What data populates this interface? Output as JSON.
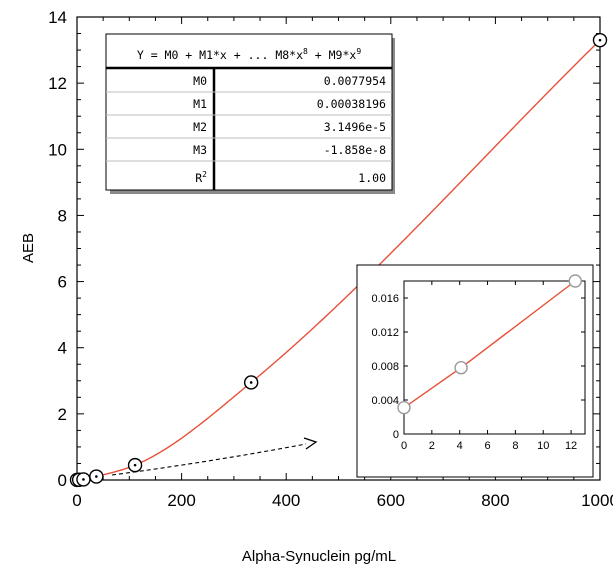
{
  "chart_data": {
    "type": "scatter",
    "xlabel": "Alpha-Synuclein pg/mL",
    "ylabel": "AEB",
    "xlim": [
      0,
      1000
    ],
    "ylim": [
      0,
      14
    ],
    "x_ticks": [
      "0",
      "200",
      "400",
      "600",
      "800",
      "1000"
    ],
    "y_ticks": [
      "0",
      "2",
      "4",
      "6",
      "8",
      "10",
      "12",
      "14"
    ],
    "grid": false,
    "series": [
      {
        "x": [
          0,
          4.1,
          12.3,
          37,
          111,
          333,
          1000
        ],
        "y": [
          0.0031,
          0.0078,
          0.018,
          0.105,
          0.45,
          2.95,
          13.3
        ]
      }
    ],
    "fit": {
      "equation_prefix": "Y = M0 + M1*x + ... M8*x",
      "equation_exp1": "8",
      "equation_mid": " + M9*x",
      "equation_exp2": "9",
      "coefficients": [
        {
          "name": "M0",
          "value": "0.0077954"
        },
        {
          "name": "M1",
          "value": "0.00038196"
        },
        {
          "name": "M2",
          "value": "3.1496e-5"
        },
        {
          "name": "M3",
          "value": "-1.858e-8"
        }
      ],
      "r2_label": "R",
      "r2_sup": "2",
      "r2_value": "1.00",
      "color": "#e8503a"
    },
    "inset": {
      "xlim": [
        0,
        13
      ],
      "ylim": [
        0,
        0.018
      ],
      "x_ticks": [
        "0",
        "2",
        "4",
        "6",
        "8",
        "10",
        "12"
      ],
      "y_ticks": [
        "0",
        "0.004",
        "0.008",
        "0.012",
        "0.016"
      ],
      "points": {
        "x": [
          0,
          4.1,
          12.3
        ],
        "y": [
          0.0031,
          0.0078,
          0.018
        ]
      }
    }
  }
}
